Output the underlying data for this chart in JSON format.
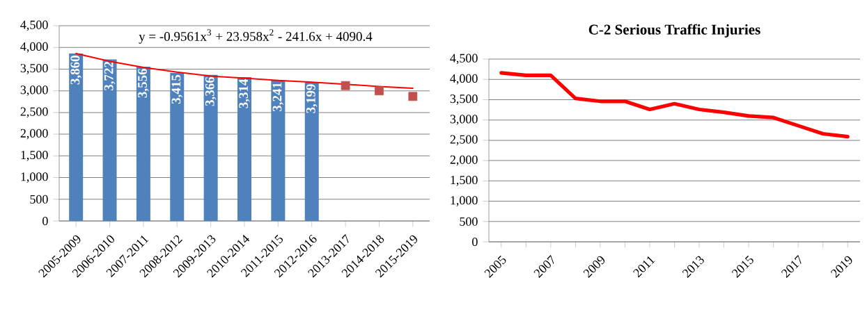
{
  "chart_data": [
    {
      "type": "bar",
      "categories": [
        "2005-2009",
        "2006-2010",
        "2007-2011",
        "2008-2012",
        "2009-2013",
        "2010-2014",
        "2011-2015",
        "2012-2016",
        "2013-2017",
        "2014-2018",
        "2015-2019"
      ],
      "series": [
        {
          "type": "bar",
          "color": "#4f81bd",
          "values": [
            3860,
            3722,
            3556,
            3415,
            3366,
            3314,
            3241,
            3199,
            null,
            null,
            null
          ],
          "value_labels": [
            "3,860",
            "3,722",
            "3,556",
            "3,415",
            "3,366",
            "3,314",
            "3,241",
            "3,199",
            null,
            null,
            null
          ]
        },
        {
          "type": "line",
          "color": "#ff0000",
          "values": [
            3860,
            3680,
            3540,
            3430,
            3340,
            3290,
            3240,
            3200,
            3150,
            3100,
            3060
          ]
        },
        {
          "type": "scatter",
          "color": "#c0504d",
          "marker": "square",
          "x": [
            "2013-2017",
            "2014-2018",
            "2015-2019"
          ],
          "values": [
            3120,
            3000,
            2870
          ]
        }
      ],
      "ylim": [
        0,
        4500
      ],
      "yticks": [
        0,
        500,
        {
          "value": 1000,
          "label": "1,000"
        },
        {
          "value": 1500,
          "label": "1,500"
        },
        {
          "value": 2000,
          "label": "2,000"
        },
        {
          "value": 2500,
          "label": "2,500"
        },
        {
          "value": 3000,
          "label": "3,000"
        },
        {
          "value": 3500,
          "label": "3,500"
        },
        {
          "value": 4000,
          "label": "4,000"
        },
        {
          "value": 4500,
          "label": "4,500"
        }
      ],
      "grid": "y",
      "annotations": [
        "y = -0.9561x$^{3}$ + 23.958x$^{2}$ - 241.6x + 4090.4"
      ]
    },
    {
      "type": "line",
      "title": "C-2 Serious Traffic Injuries",
      "categories": [
        "2005",
        null,
        "2007",
        null,
        "2009",
        null,
        "2011",
        null,
        "2013",
        null,
        "2015",
        null,
        "2017",
        null,
        "2019"
      ],
      "series": [
        {
          "color": "#ff0000",
          "values": [
            4160,
            4100,
            4100,
            3530,
            3460,
            3460,
            3260,
            3400,
            3260,
            3190,
            3100,
            3060,
            2860,
            2660,
            2590
          ]
        }
      ],
      "ylim": [
        0,
        4500
      ],
      "yticks": [
        0,
        500,
        {
          "value": 1000,
          "label": "1,000"
        },
        {
          "value": 1500,
          "label": "1,500"
        },
        {
          "value": 2000,
          "label": "2,000"
        },
        {
          "value": 2500,
          "label": "2,500"
        },
        {
          "value": 3000,
          "label": "3,000"
        },
        {
          "value": 3500,
          "label": "3,500"
        },
        {
          "value": 4000,
          "label": "4,000"
        },
        {
          "value": 4500,
          "label": "4,500"
        }
      ],
      "grid": "y",
      "line_style": "solid",
      "marker": "none"
    }
  ]
}
